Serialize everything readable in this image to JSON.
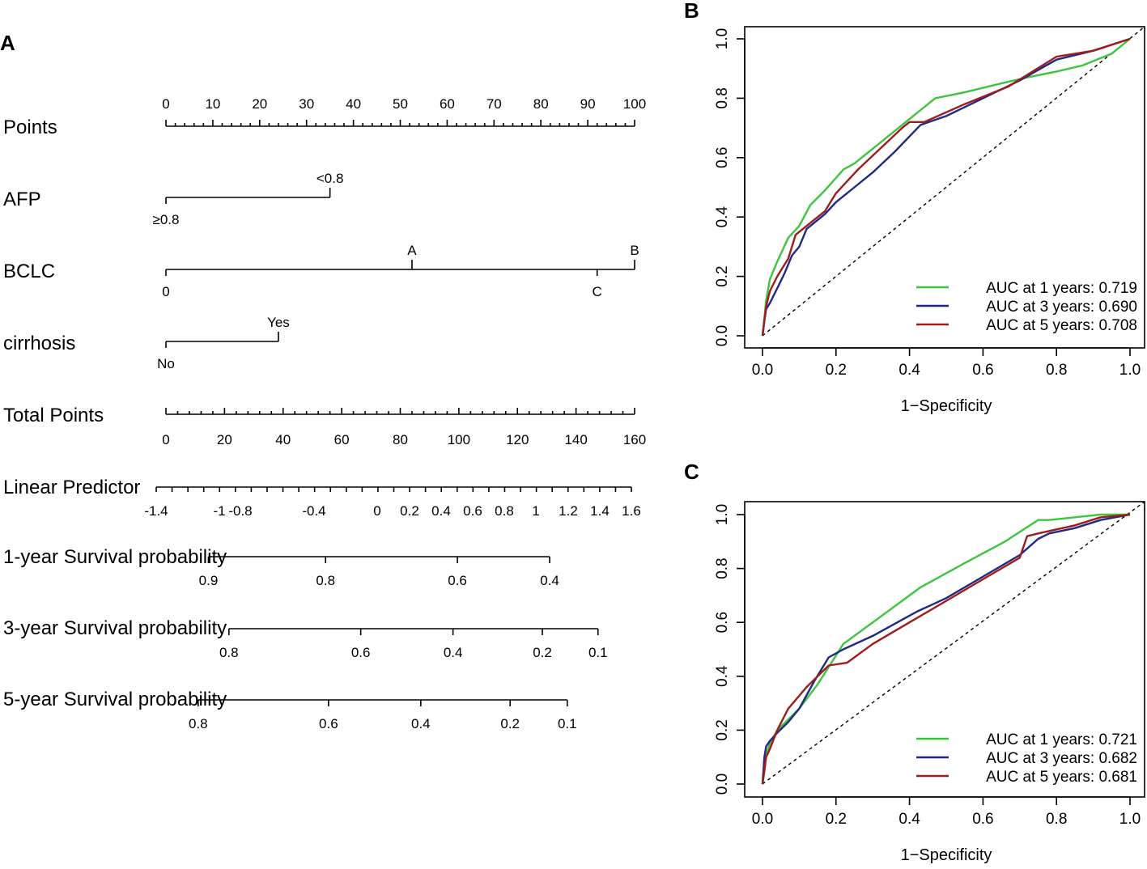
{
  "panel_labels": {
    "a": "A",
    "b": "B",
    "c": "C"
  },
  "chart_data": [
    {
      "type": "nomogram",
      "rows": [
        {
          "label": "Points",
          "kind": "points",
          "min": 0,
          "max": 100,
          "ticks": [
            "0",
            "10",
            "20",
            "30",
            "40",
            "50",
            "60",
            "70",
            "80",
            "90",
            "100"
          ]
        },
        {
          "label": "AFP",
          "kind": "factor",
          "levels": [
            {
              "name": "≥0.8",
              "points": 0
            },
            {
              "name": "<0.8",
              "points": 35
            }
          ]
        },
        {
          "label": "BCLC",
          "kind": "factor",
          "levels": [
            {
              "name": "0",
              "points": 0
            },
            {
              "name": "A",
              "points": 52.5
            },
            {
              "name": "C",
              "points": 92
            },
            {
              "name": "B",
              "points": 100
            }
          ]
        },
        {
          "label": "cirrhosis",
          "kind": "factor",
          "levels": [
            {
              "name": "No",
              "points": 0
            },
            {
              "name": "Yes",
              "points": 24
            }
          ]
        },
        {
          "label": "Total Points",
          "kind": "total",
          "min": 0,
          "max": 160,
          "ticks": [
            "0",
            "20",
            "40",
            "60",
            "80",
            "100",
            "120",
            "140",
            "160"
          ]
        },
        {
          "label": "Linear Predictor",
          "kind": "lp",
          "ticks": [
            "-1.4",
            "-1",
            "-0.8",
            "-0.4",
            "0",
            "0.2",
            "0.4",
            "0.6",
            "0.8",
            "1",
            "1.2",
            "1.4",
            "1.6"
          ]
        },
        {
          "label": "1-year Survival probability",
          "kind": "prob",
          "ticks": [
            {
              "v": "0.9",
              "total": 14.5
            },
            {
              "v": "0.8",
              "total": 54.5
            },
            {
              "v": "0.6",
              "total": 99.5
            },
            {
              "v": "0.4",
              "total": 131
            }
          ]
        },
        {
          "label": "3-year Survival probability",
          "kind": "prob",
          "ticks": [
            {
              "v": "0.8",
              "total": 21.5
            },
            {
              "v": "0.6",
              "total": 66.5
            },
            {
              "v": "0.4",
              "total": 98
            },
            {
              "v": "0.2",
              "total": 128.5
            },
            {
              "v": "0.1",
              "total": 147.5
            }
          ]
        },
        {
          "label": "5-year Survival probability",
          "kind": "prob",
          "ticks": [
            {
              "v": "0.8",
              "total": 11
            },
            {
              "v": "0.6",
              "total": 55.5
            },
            {
              "v": "0.4",
              "total": 87
            },
            {
              "v": "0.2",
              "total": 117.5
            },
            {
              "v": "0.1",
              "total": 137
            }
          ]
        }
      ]
    },
    {
      "type": "line",
      "panel": "B",
      "xlabel": "1−Specificity",
      "ylabel": "",
      "xlim": [
        0,
        1
      ],
      "ylim": [
        0,
        1
      ],
      "xticks": [
        "0.0",
        "0.2",
        "0.4",
        "0.6",
        "0.8",
        "1.0"
      ],
      "yticks": [
        "0.0",
        "0.2",
        "0.4",
        "0.6",
        "0.8",
        "1.0"
      ],
      "legend_position": "bottom-right",
      "series": [
        {
          "name": "AUC at 1 years: 0.719",
          "color": "#3fc43f",
          "x": [
            0,
            0.005,
            0.01,
            0.02,
            0.04,
            0.07,
            0.1,
            0.13,
            0.17,
            0.22,
            0.25,
            0.32,
            0.4,
            0.47,
            0.55,
            0.65,
            0.72,
            0.8,
            0.87,
            0.95,
            1.0
          ],
          "y": [
            0,
            0.06,
            0.12,
            0.19,
            0.25,
            0.33,
            0.37,
            0.44,
            0.49,
            0.56,
            0.58,
            0.65,
            0.73,
            0.8,
            0.82,
            0.85,
            0.87,
            0.89,
            0.91,
            0.95,
            1.0
          ]
        },
        {
          "name": "AUC at 3 years: 0.690",
          "color": "#1f2a80",
          "x": [
            0,
            0.005,
            0.01,
            0.02,
            0.04,
            0.06,
            0.08,
            0.1,
            0.12,
            0.17,
            0.2,
            0.25,
            0.3,
            0.36,
            0.43,
            0.5,
            0.6,
            0.7,
            0.8,
            0.9,
            1.0
          ],
          "y": [
            0,
            0.05,
            0.09,
            0.11,
            0.16,
            0.21,
            0.27,
            0.3,
            0.36,
            0.41,
            0.45,
            0.5,
            0.55,
            0.62,
            0.71,
            0.74,
            0.8,
            0.86,
            0.93,
            0.96,
            1.0
          ]
        },
        {
          "name": "AUC at 5 years: 0.708",
          "color": "#a01c1c",
          "x": [
            0,
            0.005,
            0.01,
            0.02,
            0.04,
            0.07,
            0.09,
            0.12,
            0.17,
            0.2,
            0.26,
            0.32,
            0.38,
            0.4,
            0.44,
            0.55,
            0.67,
            0.8,
            0.9,
            1.0
          ],
          "y": [
            0,
            0.05,
            0.1,
            0.15,
            0.2,
            0.26,
            0.34,
            0.37,
            0.42,
            0.48,
            0.56,
            0.63,
            0.7,
            0.72,
            0.72,
            0.78,
            0.84,
            0.94,
            0.96,
            1.0
          ]
        }
      ]
    },
    {
      "type": "line",
      "panel": "C",
      "xlabel": "1−Specificity",
      "ylabel": "",
      "xlim": [
        0,
        1
      ],
      "ylim": [
        0,
        1
      ],
      "xticks": [
        "0.0",
        "0.2",
        "0.4",
        "0.6",
        "0.8",
        "1.0"
      ],
      "yticks": [
        "0.0",
        "0.2",
        "0.4",
        "0.6",
        "0.8",
        "1.0"
      ],
      "legend_position": "bottom-right",
      "series": [
        {
          "name": "AUC at 1 years: 0.721",
          "color": "#3fc43f",
          "x": [
            0,
            0.005,
            0.01,
            0.02,
            0.04,
            0.07,
            0.1,
            0.15,
            0.22,
            0.3,
            0.43,
            0.55,
            0.66,
            0.75,
            0.78,
            0.85,
            0.92,
            1.0
          ],
          "y": [
            0,
            0.05,
            0.11,
            0.15,
            0.2,
            0.24,
            0.28,
            0.37,
            0.52,
            0.6,
            0.73,
            0.82,
            0.9,
            0.98,
            0.98,
            0.99,
            1.0,
            1.0
          ]
        },
        {
          "name": "AUC at 3 years: 0.682",
          "color": "#1f2a80",
          "x": [
            0,
            0.005,
            0.01,
            0.02,
            0.04,
            0.07,
            0.1,
            0.14,
            0.18,
            0.22,
            0.3,
            0.42,
            0.5,
            0.6,
            0.7,
            0.75,
            0.78,
            0.85,
            0.92,
            1.0
          ],
          "y": [
            0,
            0.1,
            0.14,
            0.16,
            0.19,
            0.23,
            0.28,
            0.38,
            0.47,
            0.5,
            0.55,
            0.64,
            0.69,
            0.77,
            0.85,
            0.91,
            0.93,
            0.95,
            0.98,
            1.0
          ]
        },
        {
          "name": "AUC at 5 years: 0.681",
          "color": "#a01c1c",
          "x": [
            0,
            0.005,
            0.01,
            0.02,
            0.04,
            0.07,
            0.12,
            0.18,
            0.23,
            0.3,
            0.4,
            0.5,
            0.6,
            0.7,
            0.72,
            0.75,
            0.85,
            0.92,
            1.0
          ],
          "y": [
            0,
            0.05,
            0.1,
            0.13,
            0.2,
            0.28,
            0.36,
            0.44,
            0.45,
            0.52,
            0.6,
            0.68,
            0.76,
            0.84,
            0.92,
            0.93,
            0.96,
            0.99,
            1.0
          ]
        }
      ]
    }
  ]
}
